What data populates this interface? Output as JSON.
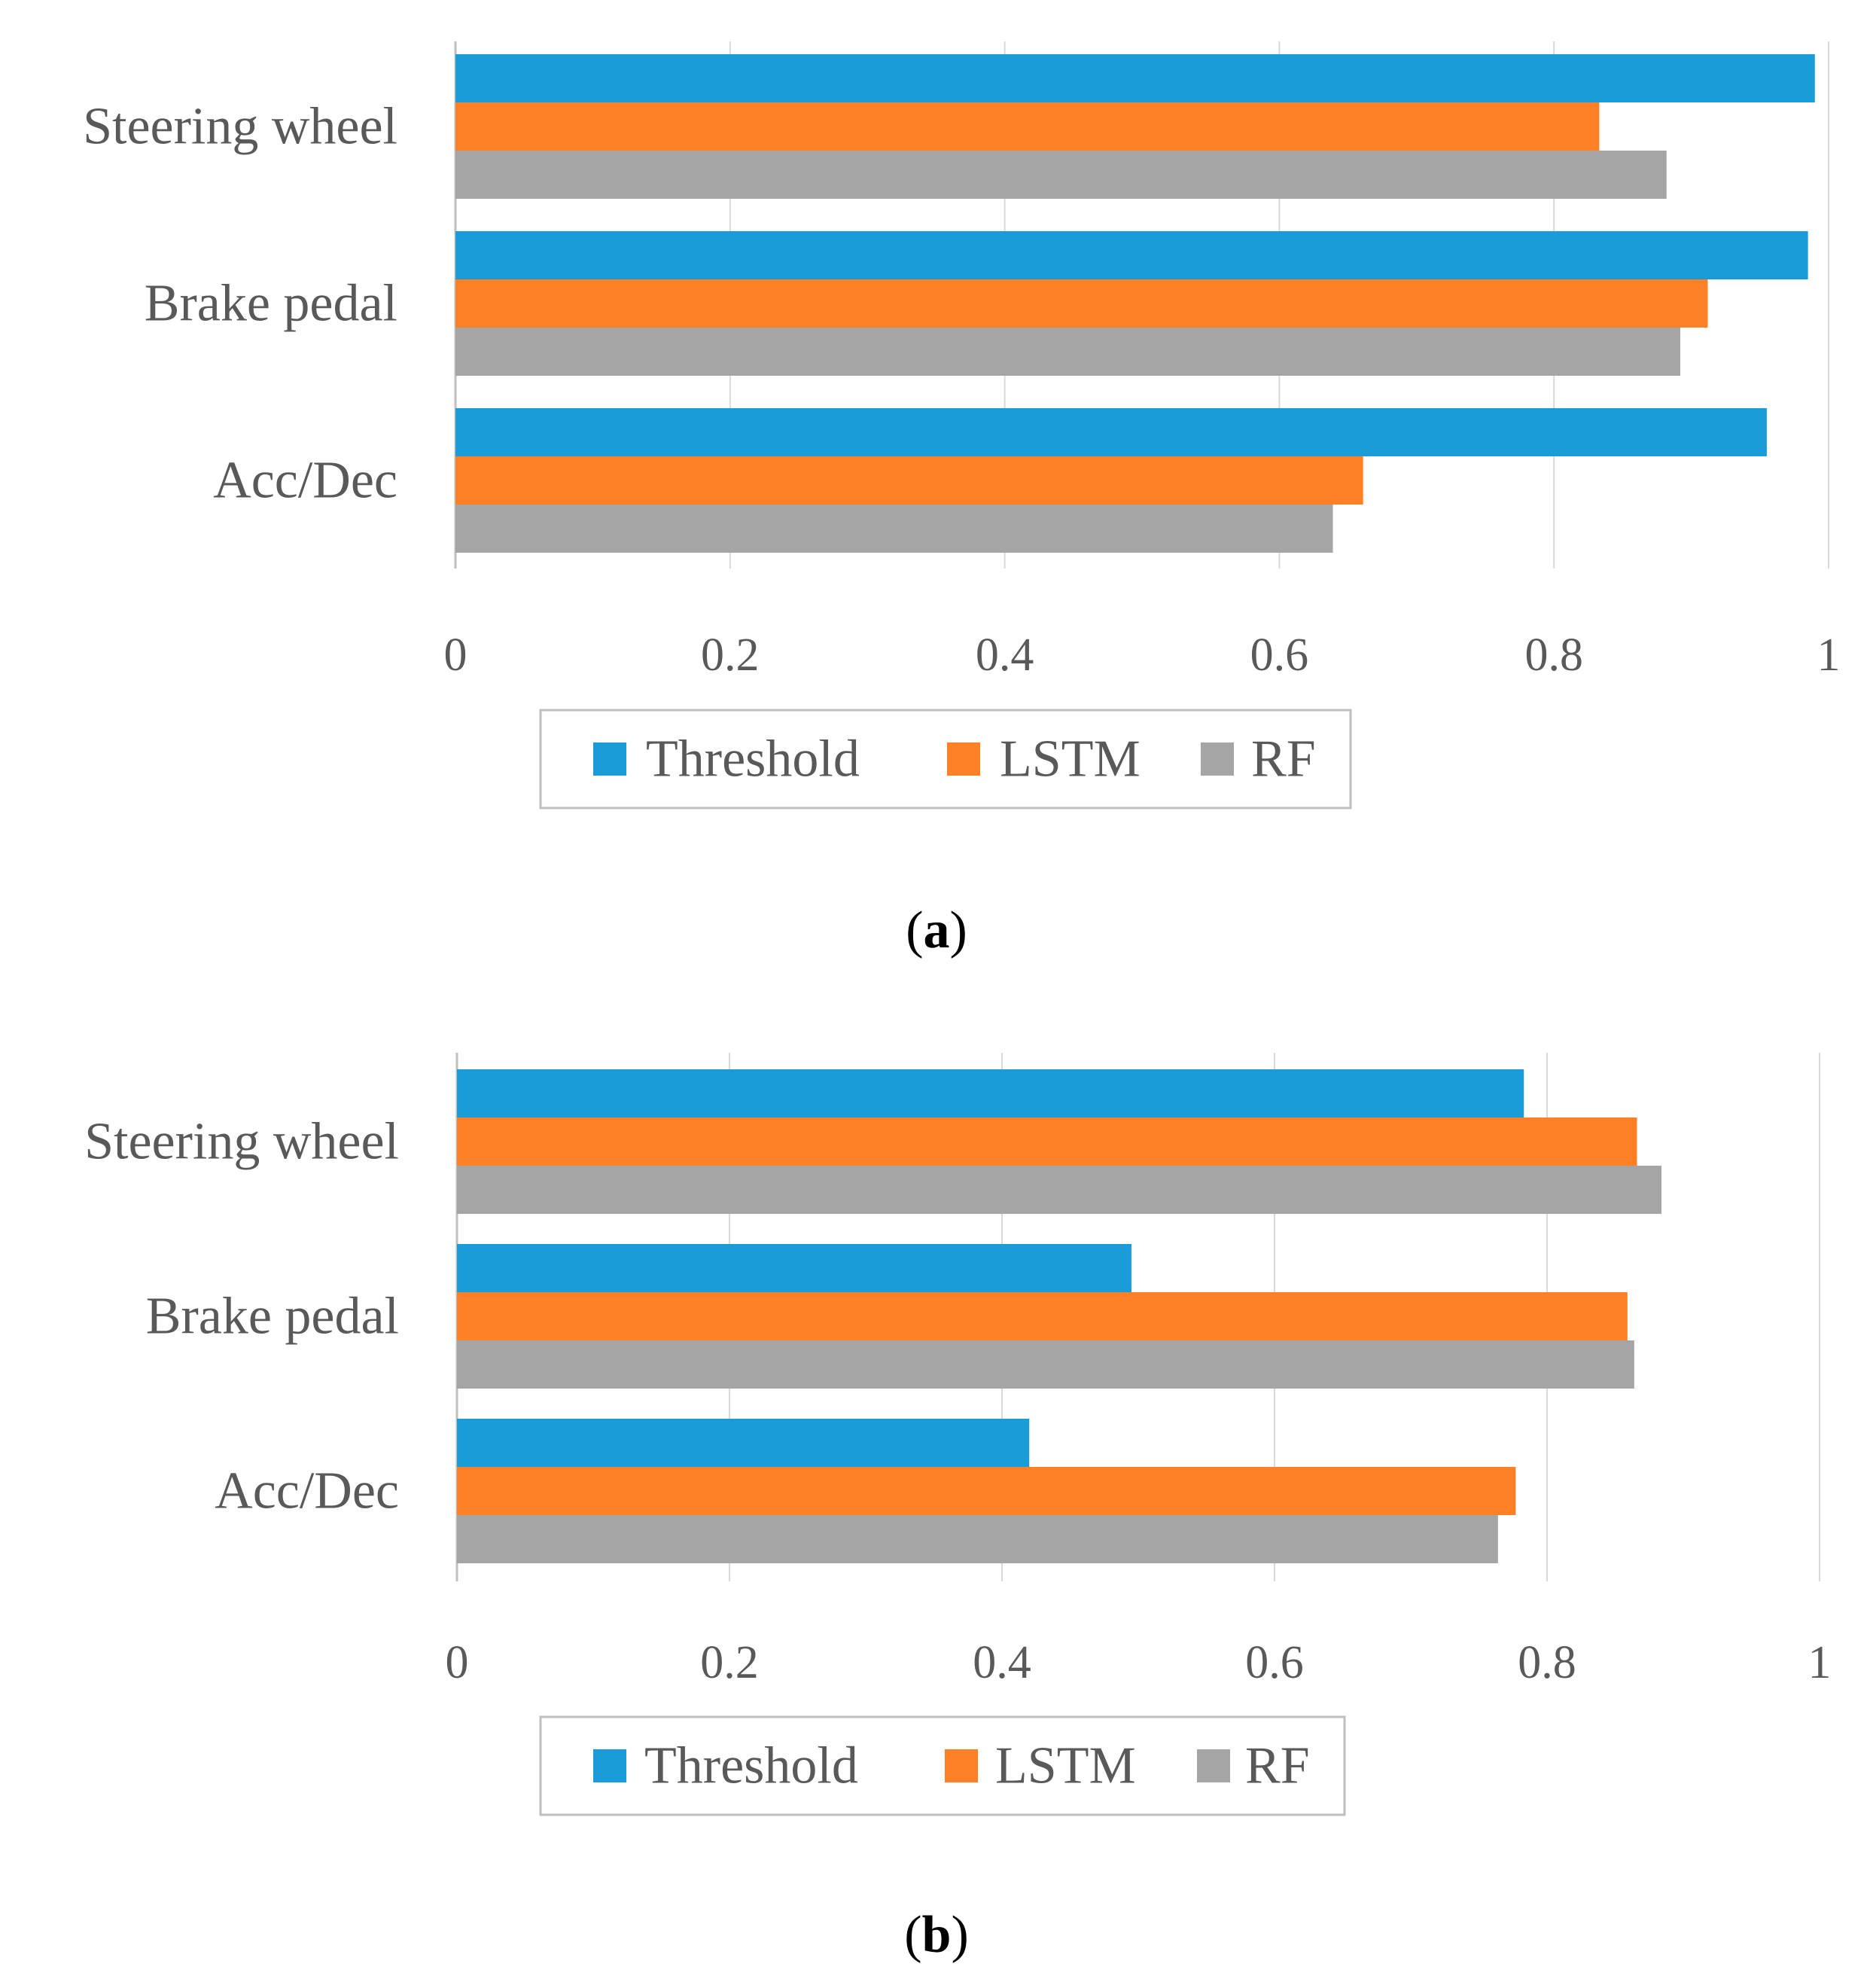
{
  "colors": {
    "threshold": "#1a9cd8",
    "lstm": "#fd7f26",
    "rf": "#a5a5a5",
    "grid": "#d9d9d9",
    "axis": "#bfbfbf",
    "text": "#595959"
  },
  "chart_data": [
    {
      "type": "bar",
      "orientation": "horizontal",
      "caption_letter": "a",
      "categories": [
        "Steering wheel",
        "Brake pedal",
        "Acc/Dec"
      ],
      "series": [
        {
          "name": "Threshold",
          "color_key": "threshold",
          "values": [
            0.99,
            0.985,
            0.955
          ]
        },
        {
          "name": "LSTM",
          "color_key": "lstm",
          "values": [
            0.833,
            0.912,
            0.661
          ]
        },
        {
          "name": "RF",
          "color_key": "rf",
          "values": [
            0.882,
            0.892,
            0.639
          ]
        }
      ],
      "xlim": [
        0,
        1
      ],
      "ticks": [
        "0",
        "0.2",
        "0.4",
        "0.6",
        "0.8",
        "1"
      ],
      "tick_values": [
        0,
        0.2,
        0.4,
        0.6,
        0.8,
        1
      ],
      "grid": true,
      "legend_position": "bottom"
    },
    {
      "type": "bar",
      "orientation": "horizontal",
      "caption_letter": "b",
      "categories": [
        "Steering wheel",
        "Brake pedal",
        "Acc/Dec"
      ],
      "series": [
        {
          "name": "Threshold",
          "color_key": "threshold",
          "values": [
            0.783,
            0.495,
            0.42
          ]
        },
        {
          "name": "LSTM",
          "color_key": "lstm",
          "values": [
            0.866,
            0.859,
            0.777
          ]
        },
        {
          "name": "RF",
          "color_key": "rf",
          "values": [
            0.884,
            0.864,
            0.764
          ]
        }
      ],
      "xlim": [
        0,
        1
      ],
      "ticks": [
        "0",
        "0.2",
        "0.4",
        "0.6",
        "0.8",
        "1"
      ],
      "tick_values": [
        0,
        0.2,
        0.4,
        0.6,
        0.8,
        1
      ],
      "grid": true,
      "legend_position": "bottom"
    }
  ]
}
